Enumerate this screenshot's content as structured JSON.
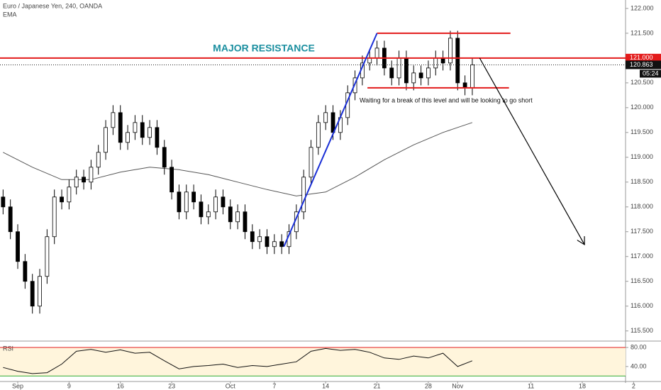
{
  "header": {
    "title": "Euro / Japanese Yen, 240, OANDA"
  },
  "chart_data": [
    {
      "type": "candlestick",
      "x": [
        0,
        1,
        2,
        3,
        4,
        5,
        6,
        7,
        8,
        9,
        10,
        11,
        12,
        13,
        14,
        15,
        16,
        17,
        18,
        19,
        20,
        21,
        22,
        23,
        24,
        25,
        26,
        27,
        28,
        29,
        30,
        31,
        32,
        33,
        34,
        35,
        36,
        37,
        38,
        39,
        40,
        41,
        42,
        43,
        44,
        45,
        46,
        47,
        48,
        49,
        50,
        51,
        52,
        53,
        54,
        55,
        56,
        57,
        58,
        59,
        60,
        61,
        62,
        63,
        64
      ],
      "open": [
        118.2,
        118.0,
        117.5,
        116.9,
        116.5,
        116.0,
        116.6,
        117.4,
        118.2,
        118.1,
        118.4,
        118.6,
        118.5,
        118.8,
        119.1,
        119.6,
        119.9,
        119.3,
        119.5,
        119.7,
        119.4,
        119.6,
        119.2,
        118.8,
        118.3,
        117.9,
        118.3,
        118.1,
        117.8,
        117.9,
        118.2,
        118.0,
        117.7,
        117.9,
        117.5,
        117.3,
        117.4,
        117.2,
        117.3,
        117.2,
        117.5,
        117.9,
        118.6,
        119.2,
        119.7,
        119.9,
        119.5,
        119.8,
        120.3,
        120.6,
        120.9,
        121.0,
        121.2,
        120.8,
        120.6,
        121.0,
        120.5,
        120.7,
        120.6,
        120.8,
        121.0,
        120.9,
        121.4,
        120.5,
        120.4
      ],
      "high": [
        118.35,
        118.15,
        117.65,
        117.05,
        116.65,
        116.75,
        117.55,
        118.35,
        118.35,
        118.55,
        118.75,
        118.75,
        118.95,
        119.25,
        119.75,
        120.05,
        120.05,
        119.65,
        119.85,
        119.85,
        119.75,
        119.75,
        119.35,
        118.95,
        118.45,
        118.45,
        118.45,
        118.25,
        118.05,
        118.35,
        118.35,
        118.15,
        118.05,
        118.05,
        117.65,
        117.55,
        117.55,
        117.45,
        117.45,
        117.65,
        118.05,
        118.75,
        119.35,
        119.85,
        120.05,
        120.05,
        119.95,
        120.45,
        120.75,
        121.05,
        121.15,
        121.35,
        121.35,
        120.95,
        121.15,
        121.15,
        120.85,
        120.85,
        120.95,
        121.15,
        121.15,
        121.55,
        121.55,
        120.65,
        121.0
      ],
      "low": [
        117.85,
        117.35,
        116.75,
        116.35,
        115.85,
        115.85,
        116.45,
        117.25,
        117.95,
        117.95,
        118.25,
        118.35,
        118.35,
        118.65,
        118.95,
        119.45,
        119.15,
        119.15,
        119.35,
        119.25,
        119.25,
        119.05,
        118.65,
        118.15,
        117.75,
        117.75,
        117.95,
        117.65,
        117.65,
        117.75,
        117.85,
        117.55,
        117.55,
        117.35,
        117.15,
        117.15,
        117.05,
        117.05,
        117.05,
        117.05,
        117.35,
        117.75,
        118.45,
        119.05,
        119.55,
        119.35,
        119.35,
        119.65,
        120.15,
        120.45,
        120.75,
        120.85,
        120.65,
        120.45,
        120.45,
        120.35,
        120.35,
        120.45,
        120.45,
        120.65,
        120.75,
        120.75,
        120.35,
        120.25,
        120.25
      ],
      "close": [
        118.0,
        117.5,
        116.9,
        116.5,
        116.0,
        116.6,
        117.4,
        118.2,
        118.1,
        118.4,
        118.6,
        118.5,
        118.8,
        119.1,
        119.6,
        119.9,
        119.3,
        119.5,
        119.7,
        119.4,
        119.6,
        119.2,
        118.8,
        118.3,
        117.9,
        118.3,
        118.1,
        117.8,
        117.9,
        118.2,
        118.0,
        117.7,
        117.9,
        117.5,
        117.3,
        117.4,
        117.2,
        117.3,
        117.2,
        117.5,
        117.9,
        118.6,
        119.2,
        119.7,
        119.9,
        119.5,
        119.8,
        120.3,
        120.6,
        120.9,
        121.0,
        121.2,
        120.8,
        120.6,
        121.0,
        120.5,
        120.7,
        120.6,
        120.8,
        121.0,
        120.9,
        121.4,
        120.5,
        120.4,
        120.863
      ],
      "up_color": "#ffffff",
      "down_color": "#000000",
      "ema": {
        "name": "EMA",
        "color": "#555555",
        "x": [
          0,
          4,
          8,
          12,
          16,
          20,
          24,
          28,
          32,
          36,
          40,
          44,
          48,
          52,
          56,
          60,
          64
        ],
        "values": [
          119.1,
          118.8,
          118.55,
          118.55,
          118.7,
          118.8,
          118.75,
          118.65,
          118.5,
          118.35,
          118.22,
          118.3,
          118.6,
          118.95,
          119.25,
          119.5,
          119.7
        ]
      },
      "xlim": [
        -0.42,
        84.9
      ],
      "xticks": [
        {
          "value": 2,
          "label": "Sep"
        },
        9,
        16,
        23,
        {
          "value": 31,
          "label": "Oct"
        },
        {
          "value": 37,
          "label": "7"
        },
        {
          "value": 44,
          "label": "14"
        },
        {
          "value": 51,
          "label": "21"
        },
        {
          "value": 58,
          "label": "28"
        },
        {
          "value": 62,
          "label": "Nov"
        },
        {
          "value": 72,
          "label": "11"
        },
        {
          "value": 79,
          "label": "18"
        },
        {
          "value": 86,
          "label": "2"
        }
      ],
      "ylim": [
        115.31,
        122.17
      ],
      "yticks": [
        {
          "value": 115.5,
          "label": "115.500"
        },
        {
          "value": 116,
          "label": "116.000"
        },
        {
          "value": 116.5,
          "label": "116.500"
        },
        {
          "value": 117,
          "label": "117.000"
        },
        {
          "value": 117.5,
          "label": "117.500"
        },
        {
          "value": 118,
          "label": "118.000"
        },
        {
          "value": 118.5,
          "label": "118.500"
        },
        {
          "value": 119,
          "label": "119.000"
        },
        {
          "value": 119.5,
          "label": "119.500"
        },
        {
          "value": 120,
          "label": "120.000"
        },
        {
          "value": 120.5,
          "label": "120.500"
        },
        {
          "value": 121,
          "label": "121.000"
        },
        {
          "value": 121.5,
          "label": "121.500"
        },
        {
          "value": 122,
          "label": "122.000"
        }
      ],
      "resistance": {
        "value": 121,
        "label": "121.000",
        "color": "#e31b1b"
      },
      "last_price": 120.863,
      "countdown": "05:24",
      "drawings": [
        {
          "color": "#e31b1b",
          "x": [
            51,
            69.2
          ],
          "y": [
            121.5,
            121.5
          ]
        },
        {
          "color": "#e31b1b",
          "x": [
            49.7,
            69
          ],
          "y": [
            120.4,
            120.4
          ]
        },
        {
          "color": "#1a2fd6",
          "x": [
            38.3,
            51
          ],
          "y": [
            117.2,
            121.5
          ]
        },
        {
          "color": "#000000",
          "x": [
            65,
            79.3
          ],
          "y": [
            121,
            117.24
          ],
          "arrow": true
        }
      ],
      "annotations": [
        "MAJOR RESISTANCE",
        "Waiting for a break of this level and will be looking to go short"
      ]
    },
    {
      "type": "line",
      "title": "RSI",
      "color": "#111111",
      "x": [
        0,
        2,
        4,
        6,
        8,
        10,
        12,
        14,
        16,
        18,
        20,
        22,
        24,
        26,
        28,
        30,
        32,
        34,
        36,
        38,
        40,
        42,
        44,
        46,
        48,
        50,
        52,
        54,
        56,
        58,
        60,
        62,
        64
      ],
      "values": [
        38,
        30,
        25,
        27,
        45,
        72,
        76,
        70,
        75,
        68,
        70,
        52,
        35,
        40,
        42,
        45,
        38,
        42,
        40,
        45,
        50,
        72,
        78,
        74,
        76,
        70,
        58,
        55,
        62,
        58,
        68,
        40,
        52
      ],
      "xlim": [
        -0.42,
        84.9
      ],
      "ylim": [
        10,
        92
      ],
      "yticks": [
        {
          "value": 80,
          "label": "80.00"
        },
        {
          "value": 40,
          "label": "40.00"
        }
      ],
      "levels": [
        {
          "value": 80,
          "color": "#e31b1b"
        },
        {
          "value": 20,
          "color": "#2eaa2e"
        }
      ]
    }
  ]
}
